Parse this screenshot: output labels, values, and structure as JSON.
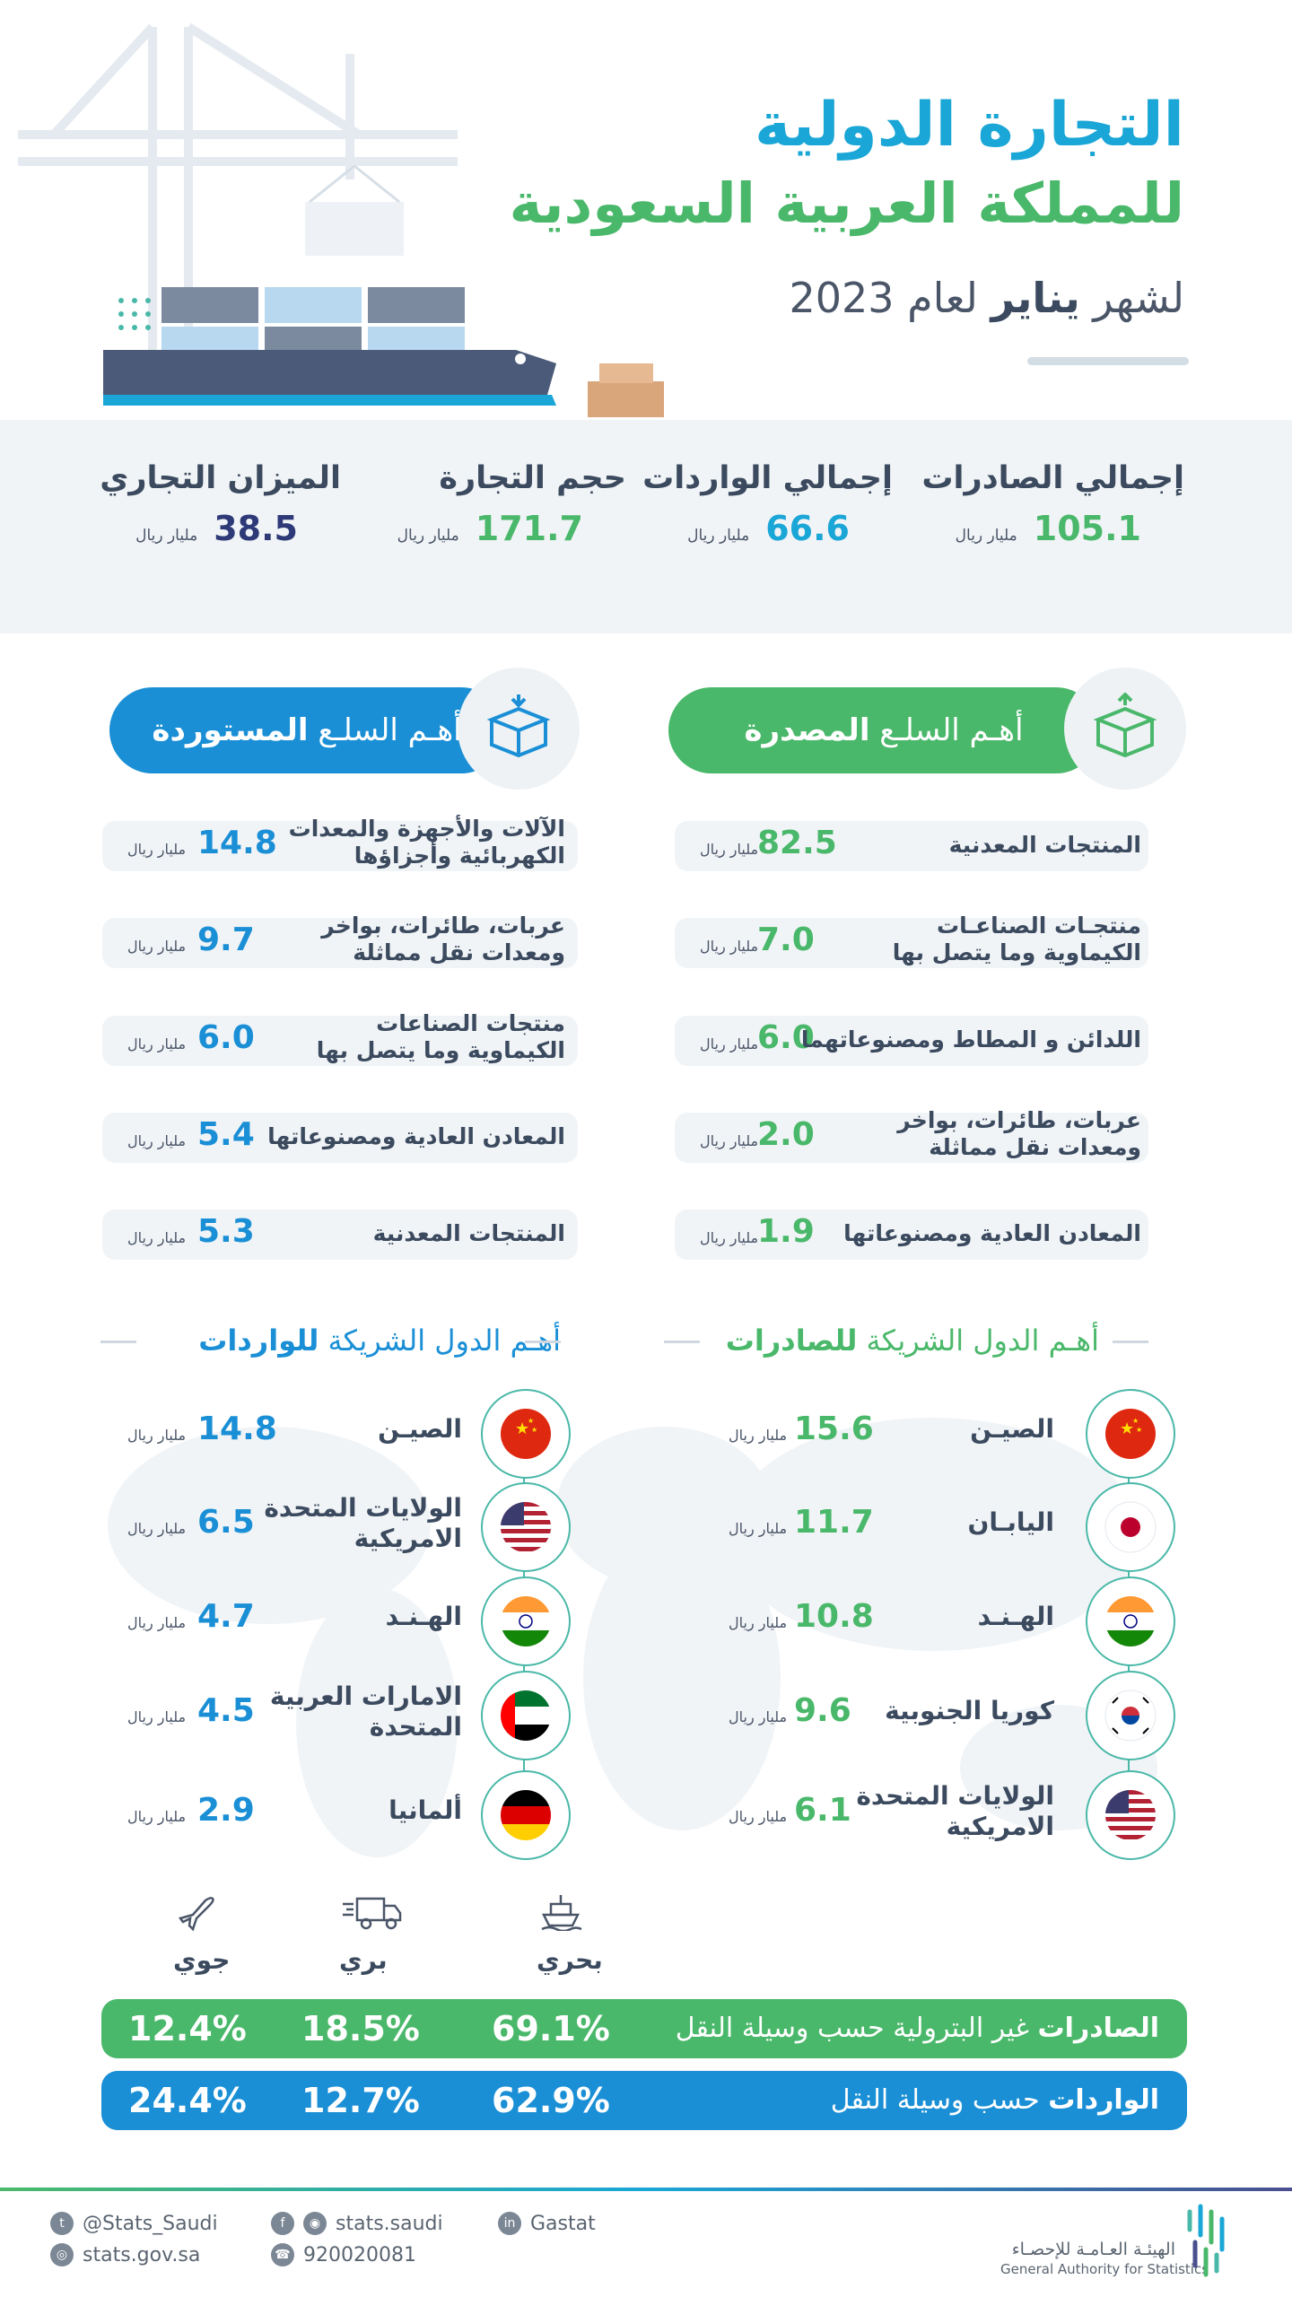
{
  "header": {
    "title_line1": "التجارة الدولية",
    "title_line2": "للمملكة العربية السعودية",
    "subtitle_prefix": "لشهر",
    "subtitle_month": "يناير",
    "subtitle_suffix": "لعام 2023"
  },
  "stats": [
    {
      "label": "إجمالي الصادرات",
      "value": "105.1",
      "unit": "مليار ريال",
      "color": "#4ab86a"
    },
    {
      "label": "إجمالي الواردات",
      "value": "66.6",
      "unit": "مليار ريال",
      "color": "#1aa6d6"
    },
    {
      "label": "حجم التجارة",
      "value": "171.7",
      "unit": "مليار ريال",
      "color": "#4ab86a"
    },
    {
      "label": "الميزان التجاري",
      "value": "38.5",
      "unit": "مليار ريال",
      "color": "#2e3a78"
    }
  ],
  "exports_goods": {
    "title_prefix": "أهـم السلـع",
    "title_bold": "المصدرة",
    "color": "#4ab86a",
    "items": [
      {
        "name_l1": "المنتجات المعدنية",
        "name_l2": "",
        "value": "82.5",
        "unit": "مليار ريال"
      },
      {
        "name_l1": "منتجـات الصناعـات",
        "name_l2": "الكيماوية وما يتصل بها",
        "value": "7.0",
        "unit": "مليار ريال"
      },
      {
        "name_l1": "اللدائن و المطاط ومصنوعاتهما",
        "name_l2": "",
        "value": "6.0",
        "unit": "مليار ريال"
      },
      {
        "name_l1": "عربات، طائرات، بواخر",
        "name_l2": "ومعدات نقل مماثلة",
        "value": "2.0",
        "unit": "مليار ريال"
      },
      {
        "name_l1": "المعادن العادية ومصنوعاتها",
        "name_l2": "",
        "value": "1.9",
        "unit": "مليار ريال"
      }
    ]
  },
  "imports_goods": {
    "title_prefix": "أهـم السلـع",
    "title_bold": "المستوردة",
    "color": "#1a8fd6",
    "items": [
      {
        "name_l1": "الآلات والأجهزة والمعدات",
        "name_l2": "الكهربائية وأجزاؤها",
        "value": "14.8",
        "unit": "مليار ريال"
      },
      {
        "name_l1": "عربات، طائرات، بواخر",
        "name_l2": "ومعدات نقل مماثلة",
        "value": "9.7",
        "unit": "مليار ريال"
      },
      {
        "name_l1": "منتجات الصناعات",
        "name_l2": "الكيماوية وما يتصل بها",
        "value": "6.0",
        "unit": "مليار ريال"
      },
      {
        "name_l1": "المعادن العادية ومصنوعاتها",
        "name_l2": "",
        "value": "5.4",
        "unit": "مليار ريال"
      },
      {
        "name_l1": "المنتجات المعدنية",
        "name_l2": "",
        "value": "5.3",
        "unit": "مليار ريال"
      }
    ]
  },
  "export_partners": {
    "title_prefix": "أهـم الدول الشريكة",
    "title_bold": "للصادرات",
    "color": "#4ab86a",
    "items": [
      {
        "name_l1": "الصيـن",
        "name_l2": "",
        "flag": "china-flag",
        "value": "15.6",
        "unit": "مليار ريال"
      },
      {
        "name_l1": "اليابـان",
        "name_l2": "",
        "flag": "japan-flag",
        "value": "11.7",
        "unit": "مليار ريال"
      },
      {
        "name_l1": "الهـنـد",
        "name_l2": "",
        "flag": "india-flag",
        "value": "10.8",
        "unit": "مليار ريال"
      },
      {
        "name_l1": "كوريا الجنوبية",
        "name_l2": "",
        "flag": "south-korea-flag",
        "value": "9.6",
        "unit": "مليار ريال"
      },
      {
        "name_l1": "الولايات المتحدة",
        "name_l2": "الامريكية",
        "flag": "usa-flag",
        "value": "6.1",
        "unit": "مليار ريال"
      }
    ]
  },
  "import_partners": {
    "title_prefix": "أهـم الدول الشريكة",
    "title_bold": "للواردات",
    "color": "#1a8fd6",
    "items": [
      {
        "name_l1": "الصيـن",
        "name_l2": "",
        "flag": "china-flag",
        "value": "14.8",
        "unit": "مليار ريال"
      },
      {
        "name_l1": "الولايات المتحدة",
        "name_l2": "الامريكية",
        "flag": "usa-flag",
        "value": "6.5",
        "unit": "مليار ريال"
      },
      {
        "name_l1": "الهـنـد",
        "name_l2": "",
        "flag": "india-flag",
        "value": "4.7",
        "unit": "مليار ريال"
      },
      {
        "name_l1": "الامارات العربية",
        "name_l2": "المتحدة",
        "flag": "uae-flag",
        "value": "4.5",
        "unit": "مليار ريال"
      },
      {
        "name_l1": "ألمانيا",
        "name_l2": "",
        "flag": "germany-flag",
        "value": "2.9",
        "unit": "مليار ريال"
      }
    ]
  },
  "transport": {
    "modes": [
      {
        "label": "بحري",
        "icon": "ship-icon"
      },
      {
        "label": "بري",
        "icon": "truck-icon"
      },
      {
        "label": "جوي",
        "icon": "plane-icon"
      }
    ],
    "exports": {
      "label_bold": "الصادرات",
      "label_rest": "غير البترولية حسب وسيلة النقل",
      "sea": "69.1%",
      "land": "18.5%",
      "air": "12.4%",
      "color": "#4ab86a"
    },
    "imports": {
      "label_bold": "الواردات",
      "label_rest": "حسب وسيلة النقل",
      "sea": "62.9%",
      "land": "12.7%",
      "air": "24.4%",
      "color": "#1a8fd6"
    }
  },
  "footer": {
    "twitter": "@Stats_Saudi",
    "website": "stats.gov.sa",
    "social": "stats.saudi",
    "phone": "920020081",
    "linkedin": "Gastat",
    "org_ar": "الهيئـة العـامـة للإحصـاء",
    "org_en": "General Authority for Statistics"
  }
}
